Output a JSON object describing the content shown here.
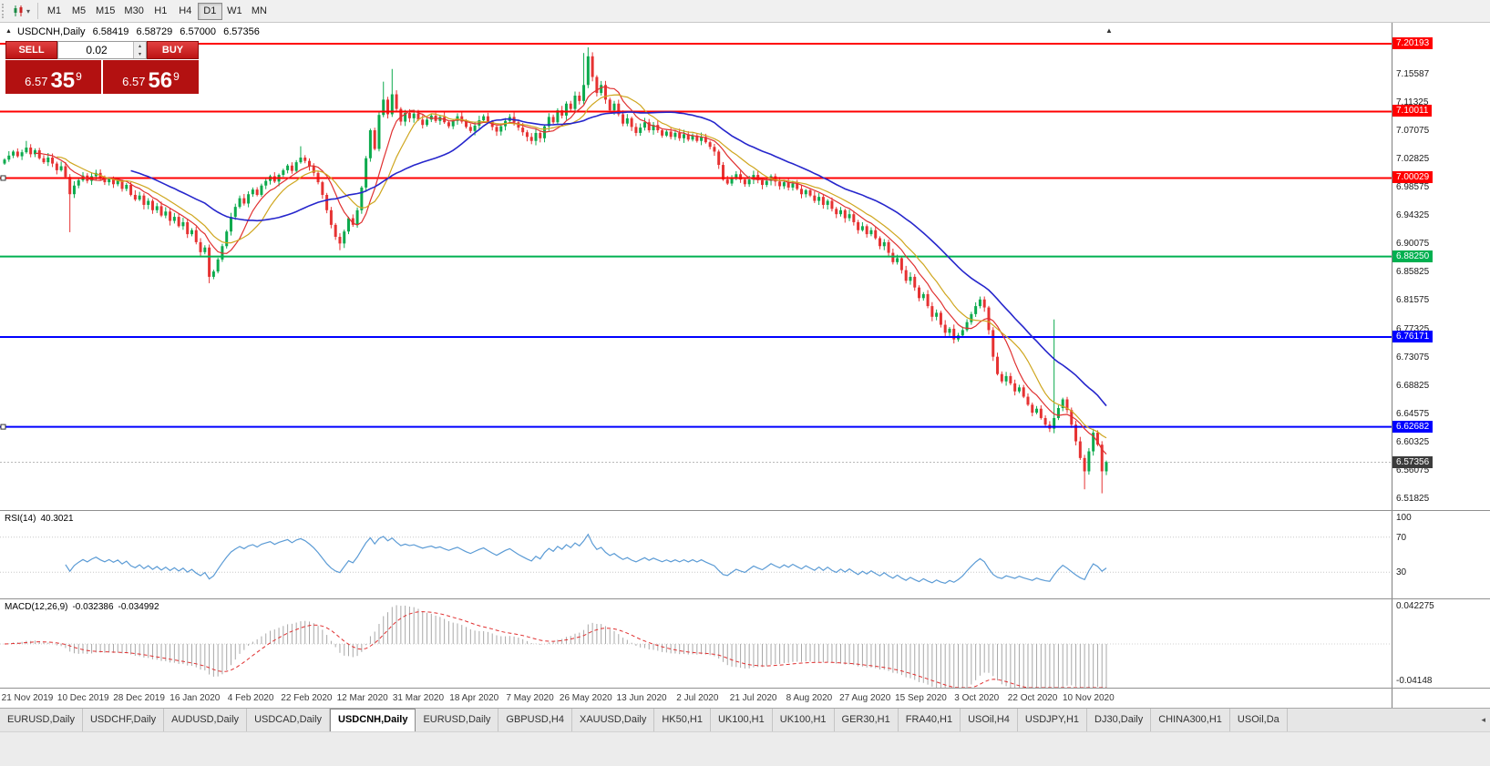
{
  "icons": {
    "collapse": "▲",
    "caret": "▾",
    "up_arrow": "▲",
    "tab_scroll": "◂",
    "spinner_up": "▴",
    "spinner_down": "▾"
  },
  "toolbar": {
    "timeframes": [
      {
        "label": "M1",
        "active": false
      },
      {
        "label": "M5",
        "active": false
      },
      {
        "label": "M15",
        "active": false
      },
      {
        "label": "M30",
        "active": false
      },
      {
        "label": "H1",
        "active": false
      },
      {
        "label": "H4",
        "active": false
      },
      {
        "label": "D1",
        "active": true
      },
      {
        "label": "W1",
        "active": false
      },
      {
        "label": "MN",
        "active": false
      }
    ]
  },
  "chart_header": {
    "symbol_period": "USDCNH,Daily",
    "open": "6.58419",
    "high": "6.58729",
    "low": "6.57000",
    "close": "6.57356"
  },
  "trade_panel": {
    "sell_label": "SELL",
    "buy_label": "BUY",
    "lot_size": "0.02",
    "bid": {
      "main": "6.57",
      "pips": "35",
      "pipette": "9"
    },
    "ask": {
      "main": "6.57",
      "pips": "56",
      "pipette": "9"
    }
  },
  "chart_data": {
    "type": "candlestick",
    "symbol": "USDCNH",
    "timeframe": "Daily",
    "title": "USDCNH,Daily",
    "ohlc_current": {
      "open": 6.58419,
      "high": 6.58729,
      "low": 6.57,
      "close": 6.57356
    },
    "ylim": [
      6.50184,
      7.23338
    ],
    "candle_up": "#0caa4d",
    "candle_down": "#e63232",
    "first_open": 7.022,
    "closes": [
      7.028,
      7.034,
      7.04,
      7.033,
      7.039,
      7.046,
      7.036,
      7.042,
      7.03,
      7.024,
      7.031,
      7.022,
      7.012,
      7.018,
      7.002,
      6.976,
      6.989,
      6.997,
      7.004,
      6.996,
      7.003,
      7.008,
      7.0,
      6.994,
      6.999,
      6.991,
      6.996,
      6.984,
      6.99,
      6.975,
      6.968,
      6.974,
      6.96,
      6.966,
      6.952,
      6.958,
      6.944,
      6.95,
      6.936,
      6.942,
      6.928,
      6.934,
      6.916,
      6.922,
      6.904,
      6.889,
      6.896,
      6.852,
      6.86,
      6.878,
      6.898,
      6.92,
      6.942,
      6.957,
      6.97,
      6.962,
      6.976,
      6.983,
      6.975,
      6.989,
      6.996,
      7.003,
      6.995,
      7.005,
      7.012,
      7.019,
      7.011,
      7.024,
      7.031,
      7.026,
      7.018,
      7.008,
      6.994,
      6.975,
      6.952,
      6.93,
      6.912,
      6.902,
      6.92,
      6.94,
      6.93,
      6.952,
      6.986,
      7.03,
      7.072,
      7.044,
      7.095,
      7.118,
      7.096,
      7.126,
      7.104,
      7.085,
      7.098,
      7.09,
      7.097,
      7.088,
      7.08,
      7.088,
      7.094,
      7.086,
      7.092,
      7.084,
      7.078,
      7.086,
      7.093,
      7.085,
      7.077,
      7.071,
      7.079,
      7.087,
      7.093,
      7.085,
      7.077,
      7.07,
      7.078,
      7.086,
      7.092,
      7.084,
      7.076,
      7.069,
      7.062,
      7.056,
      7.068,
      7.06,
      7.078,
      7.092,
      7.084,
      7.102,
      7.094,
      7.112,
      7.104,
      7.124,
      7.116,
      7.14,
      7.183,
      7.152,
      7.128,
      7.14,
      7.118,
      7.102,
      7.112,
      7.096,
      7.082,
      7.09,
      7.077,
      7.068,
      7.076,
      7.084,
      7.072,
      7.08,
      7.072,
      7.064,
      7.07,
      7.062,
      7.068,
      7.06,
      7.066,
      7.058,
      7.064,
      7.056,
      7.062,
      7.054,
      7.047,
      7.04,
      7.02,
      6.998,
      6.992,
      6.999,
      7.006,
      6.998,
      6.991,
      6.998,
      7.005,
      6.997,
      6.99,
      6.996,
      7.003,
      6.995,
      6.988,
      6.994,
      6.986,
      6.992,
      6.984,
      6.976,
      6.982,
      6.974,
      6.966,
      6.972,
      6.96,
      6.966,
      6.954,
      6.946,
      6.952,
      6.94,
      6.946,
      6.934,
      6.922,
      6.928,
      6.916,
      6.922,
      6.91,
      6.898,
      6.904,
      6.888,
      6.874,
      6.88,
      6.862,
      6.846,
      6.852,
      6.836,
      6.82,
      6.826,
      6.808,
      6.792,
      6.798,
      6.78,
      6.768,
      6.774,
      6.758,
      6.764,
      6.772,
      6.784,
      6.796,
      6.808,
      6.818,
      6.806,
      6.772,
      6.732,
      6.706,
      6.695,
      6.703,
      6.692,
      6.68,
      6.686,
      6.672,
      6.66,
      6.648,
      6.654,
      6.64,
      6.63,
      6.624,
      6.64,
      6.655,
      6.668,
      6.652,
      6.63,
      6.605,
      6.58,
      6.56,
      6.59,
      6.618,
      6.6,
      6.56,
      6.574
    ],
    "high_overrides": {
      "5": 7.056,
      "68": 7.048,
      "87": 7.145,
      "89": 7.164,
      "133": 7.188,
      "134": 7.1965,
      "241": 6.788
    },
    "low_overrides": {
      "15": 6.919,
      "47": 6.8424,
      "77": 6.892,
      "218": 6.752,
      "240": 6.619,
      "248": 6.533,
      "252": 6.527
    },
    "moving_averages": [
      {
        "period": 8,
        "color": "#e03030"
      },
      {
        "period": 13,
        "color": "#cfa61e"
      },
      {
        "period": 30,
        "color": "#2626cc"
      }
    ],
    "hlines": [
      {
        "price": 7.20193,
        "label": "7.20193",
        "color": "#ff0000",
        "selected": false
      },
      {
        "price": 7.10011,
        "label": "7.10011",
        "color": "#ff0000",
        "selected": false
      },
      {
        "price": 7.00029,
        "label": "7.00029",
        "color": "#ff0000",
        "selected": true
      },
      {
        "price": 6.8825,
        "label": "6.88250",
        "color": "#00b050",
        "selected": false
      },
      {
        "price": 6.76171,
        "label": "6.76171",
        "color": "#0000ff",
        "selected": false
      },
      {
        "price": 6.62682,
        "label": "6.62682",
        "color": "#0000ff",
        "selected": true
      }
    ],
    "current_price": 6.57356,
    "current_price_label": "6.57356",
    "current_badge_color": "#3c3c3c",
    "scale_ticks": [
      "7.15587",
      "7.11325",
      "7.07075",
      "7.02825",
      "6.98575",
      "6.94325",
      "6.90075",
      "6.85825",
      "6.81575",
      "6.77325",
      "6.73075",
      "6.68825",
      "6.64575",
      "6.60325",
      "6.56075",
      "6.51825"
    ],
    "x_labels": [
      "21 Nov 2019",
      "10 Dec 2019",
      "28 Dec 2019",
      "16 Jan 2020",
      "4 Feb 2020",
      "22 Feb 2020",
      "12 Mar 2020",
      "31 Mar 2020",
      "18 Apr 2020",
      "7 May 2020",
      "26 May 2020",
      "13 Jun 2020",
      "2 Jul 2020",
      "21 Jul 2020",
      "8 Aug 2020",
      "27 Aug 2020",
      "15 Sep 2020",
      "3 Oct 2020",
      "22 Oct 2020",
      "10 Nov 2020"
    ],
    "rsi": {
      "label": "RSI(14)",
      "value": "40.3021",
      "period": 14,
      "range": [
        0,
        100
      ],
      "levels": [
        70,
        30
      ],
      "scale": [
        "100",
        "70",
        "30"
      ],
      "color": "#5b9bd5"
    },
    "macd": {
      "label": "MACD(12,26,9)",
      "value_main": "-0.032386",
      "value_signal": "-0.034992",
      "range": [
        -0.04148,
        0.042275
      ],
      "scale_top": "0.042275",
      "scale_bottom": "-0.04148",
      "histogram_color": "#a8a8a8",
      "signal_color": "#e03030"
    }
  },
  "tab_bar": {
    "tabs": [
      {
        "label": "EURUSD,Daily",
        "active": false
      },
      {
        "label": "USDCHF,Daily",
        "active": false
      },
      {
        "label": "AUDUSD,Daily",
        "active": false
      },
      {
        "label": "USDCAD,Daily",
        "active": false
      },
      {
        "label": "USDCNH,Daily",
        "active": true
      },
      {
        "label": "EURUSD,Daily",
        "active": false
      },
      {
        "label": "GBPUSD,H4",
        "active": false
      },
      {
        "label": "XAUUSD,Daily",
        "active": false
      },
      {
        "label": "HK50,H1",
        "active": false
      },
      {
        "label": "UK100,H1",
        "active": false
      },
      {
        "label": "UK100,H1",
        "active": false
      },
      {
        "label": "GER30,H1",
        "active": false
      },
      {
        "label": "FRA40,H1",
        "active": false
      },
      {
        "label": "USOil,H4",
        "active": false
      },
      {
        "label": "USDJPY,H1",
        "active": false
      },
      {
        "label": "DJ30,Daily",
        "active": false
      },
      {
        "label": "CHINA300,H1",
        "active": false
      },
      {
        "label": "USOil,Da",
        "active": false
      }
    ]
  }
}
